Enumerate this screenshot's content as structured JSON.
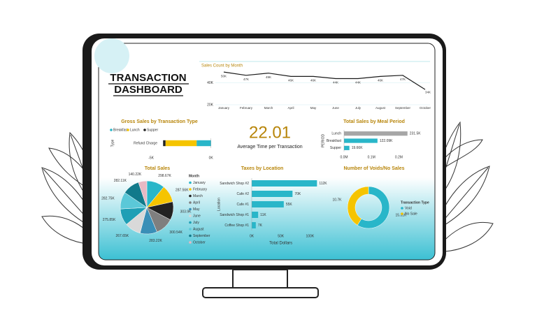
{
  "header": {
    "title": [
      "TRANSACTION",
      "DASHBOARD"
    ]
  },
  "kpi": {
    "value": "22.01",
    "label": "Average Time per Transaction"
  },
  "chart_data": [
    {
      "type": "line",
      "title": "Sales Count by Month",
      "categories": [
        "January",
        "February",
        "March",
        "April",
        "May",
        "June",
        "July",
        "August",
        "September",
        "October"
      ],
      "values": [
        50000,
        47000,
        49000,
        46000,
        46000,
        44000,
        44000,
        46000,
        47000,
        34000
      ],
      "value_labels": [
        "50K",
        "47K",
        "49K",
        "46K",
        "46K",
        "44K",
        "44K",
        "46K",
        "47K",
        "34K"
      ],
      "color": "#1a1a1a",
      "ylim": [
        20000,
        52000
      ],
      "yticks": [
        {
          "value": 40000,
          "label": "40K"
        },
        {
          "value": 20000,
          "label": "20K"
        }
      ],
      "grid": true
    },
    {
      "type": "bar",
      "horizontal": true,
      "stacked": true,
      "title": "Gross Sales by Transaction Type",
      "y_label": "Type",
      "categories": [
        "Refund Charge"
      ],
      "series": [
        {
          "name": "Breakfast",
          "color": "#29b6c9",
          "values": [
            -1200
          ]
        },
        {
          "name": "Lunch",
          "color": "#f5c400",
          "values": [
            -2600
          ]
        },
        {
          "name": "Supper",
          "color": "#222222",
          "values": [
            -200
          ]
        }
      ],
      "xlim": [
        -6000,
        600
      ],
      "xticks": [
        {
          "value": -5000,
          "label": "-5K"
        },
        {
          "value": 0,
          "label": "0K"
        }
      ],
      "grid": false
    },
    {
      "type": "bar",
      "horizontal": true,
      "title": "Total Sales by Meal Period",
      "y_label": "PERIOD",
      "categories": [
        "Lunch",
        "Breakfast",
        "Supper"
      ],
      "values": [
        231500,
        122090,
        19660
      ],
      "value_labels": [
        "231.5K",
        "122.09K",
        "19.66K"
      ],
      "colors": [
        "#a6a6a6",
        "#29b6c9",
        "#29b6c9"
      ],
      "xlim": [
        0,
        250000
      ],
      "xticks": [
        {
          "value": 0,
          "label": "0.0M"
        },
        {
          "value": 100000,
          "label": "0.1M"
        },
        {
          "value": 200000,
          "label": "0.2M"
        }
      ],
      "grid": false
    },
    {
      "type": "pie",
      "title": "Total Sales",
      "legend_title": "Month",
      "categories": [
        "January",
        "February",
        "March",
        "April",
        "May",
        "June",
        "July",
        "August",
        "September",
        "October"
      ],
      "values": [
        298670,
        287560,
        303900,
        300540,
        283220,
        267650,
        275850,
        282750,
        282110,
        140220
      ],
      "value_labels": [
        "298.67K",
        "287.56K",
        "303.9K",
        "300.54K",
        "283.22K",
        "267.65K",
        "275.85K",
        "282.75K",
        "282.11K",
        "140.22K"
      ],
      "colors": [
        "#29b6c9",
        "#f5c400",
        "#222222",
        "#7f7f7f",
        "#3a8fb7",
        "#d9d9d9",
        "#1e9fb5",
        "#5bc8d8",
        "#117a8b",
        "#e7b9c4"
      ]
    },
    {
      "type": "bar",
      "horizontal": true,
      "title": "Taxes by Location",
      "x_label": "Total Dollars",
      "y_label": "Location",
      "categories": [
        "Sandwich Shop #2",
        "Cafe #2",
        "Cafe #1",
        "Sandwich Shop #1",
        "Coffee Shop #1"
      ],
      "values": [
        112000,
        70000,
        55000,
        11000,
        7000
      ],
      "value_labels": [
        "112K",
        "70K",
        "55K",
        "11K",
        "7K"
      ],
      "color": "#29b6c9",
      "xlim": [
        0,
        120000
      ],
      "xticks": [
        {
          "value": 0,
          "label": "0K"
        },
        {
          "value": 50000,
          "label": "50K"
        },
        {
          "value": 100000,
          "label": "100K"
        }
      ],
      "grid": false
    },
    {
      "type": "donut",
      "title": "Number of Voids/No Sales",
      "legend_title": "Transaction Type",
      "categories": [
        "Void",
        "No Sale"
      ],
      "values": [
        15310,
        10700
      ],
      "value_labels": [
        "15.31K",
        "10.7K"
      ],
      "colors": [
        "#29b6c9",
        "#f5c400"
      ]
    }
  ]
}
